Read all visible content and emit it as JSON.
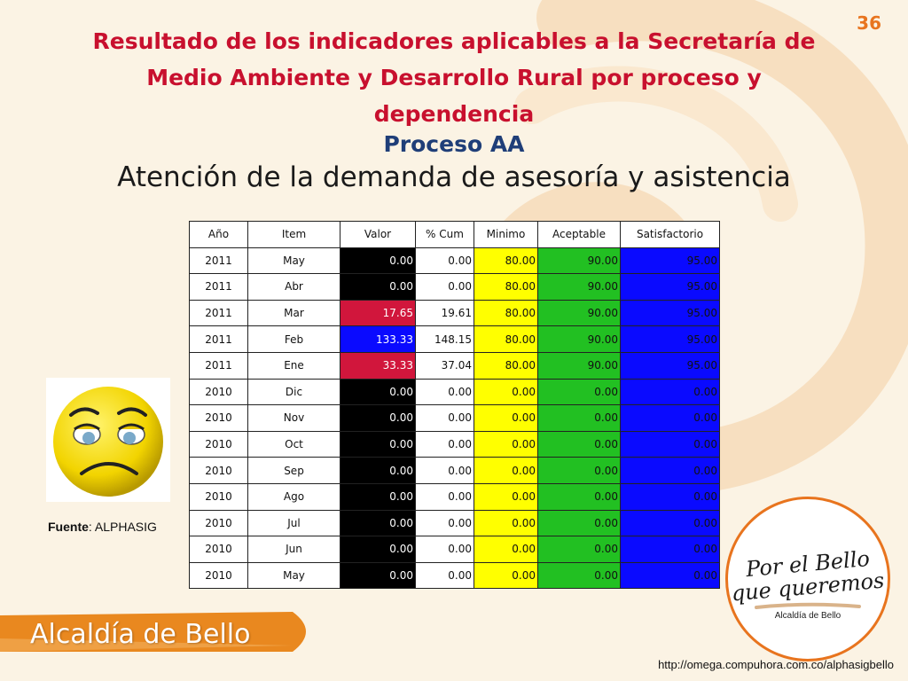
{
  "page_number": "36",
  "title": "Resultado de los indicadores aplicables a la Secretaría de Medio Ambiente y Desarrollo Rural  por proceso y dependencia",
  "subtitle": "Proceso AA",
  "heading": "Atención de la demanda de asesoría y asistencia",
  "table": {
    "headers": {
      "year": "Año",
      "item": "Item",
      "valor": "Valor",
      "cum": "% Cum",
      "minimo": "Minimo",
      "aceptable": "Aceptable",
      "satisfactorio": "Satisfactorio"
    },
    "rows": [
      {
        "year": "2011",
        "item": "May",
        "valor": "0.00",
        "cum": "0.00",
        "minimo": "80.00",
        "aceptable": "90.00",
        "satisfactorio": "95.00",
        "color": "#000000"
      },
      {
        "year": "2011",
        "item": "Abr",
        "valor": "0.00",
        "cum": "0.00",
        "minimo": "80.00",
        "aceptable": "90.00",
        "satisfactorio": "95.00",
        "color": "#000000"
      },
      {
        "year": "2011",
        "item": "Mar",
        "valor": "17.65",
        "cum": "19.61",
        "minimo": "80.00",
        "aceptable": "90.00",
        "satisfactorio": "95.00",
        "color": "#d1163c"
      },
      {
        "year": "2011",
        "item": "Feb",
        "valor": "133.33",
        "cum": "148.15",
        "minimo": "80.00",
        "aceptable": "90.00",
        "satisfactorio": "95.00",
        "color": "#0a0aff"
      },
      {
        "year": "2011",
        "item": "Ene",
        "valor": "33.33",
        "cum": "37.04",
        "minimo": "80.00",
        "aceptable": "90.00",
        "satisfactorio": "95.00",
        "color": "#d1163c"
      },
      {
        "year": "2010",
        "item": "Dic",
        "valor": "0.00",
        "cum": "0.00",
        "minimo": "0.00",
        "aceptable": "0.00",
        "satisfactorio": "0.00",
        "color": "#000000"
      },
      {
        "year": "2010",
        "item": "Nov",
        "valor": "0.00",
        "cum": "0.00",
        "minimo": "0.00",
        "aceptable": "0.00",
        "satisfactorio": "0.00",
        "color": "#000000"
      },
      {
        "year": "2010",
        "item": "Oct",
        "valor": "0.00",
        "cum": "0.00",
        "minimo": "0.00",
        "aceptable": "0.00",
        "satisfactorio": "0.00",
        "color": "#000000"
      },
      {
        "year": "2010",
        "item": "Sep",
        "valor": "0.00",
        "cum": "0.00",
        "minimo": "0.00",
        "aceptable": "0.00",
        "satisfactorio": "0.00",
        "color": "#000000"
      },
      {
        "year": "2010",
        "item": "Ago",
        "valor": "0.00",
        "cum": "0.00",
        "minimo": "0.00",
        "aceptable": "0.00",
        "satisfactorio": "0.00",
        "color": "#000000"
      },
      {
        "year": "2010",
        "item": "Jul",
        "valor": "0.00",
        "cum": "0.00",
        "minimo": "0.00",
        "aceptable": "0.00",
        "satisfactorio": "0.00",
        "color": "#000000"
      },
      {
        "year": "2010",
        "item": "Jun",
        "valor": "0.00",
        "cum": "0.00",
        "minimo": "0.00",
        "aceptable": "0.00",
        "satisfactorio": "0.00",
        "color": "#000000"
      },
      {
        "year": "2010",
        "item": "May",
        "valor": "0.00",
        "cum": "0.00",
        "minimo": "0.00",
        "aceptable": "0.00",
        "satisfactorio": "0.00",
        "color": "#000000"
      }
    ]
  },
  "face_icon": "sad-face-icon",
  "source": {
    "label": "Fuente",
    "value": ": ALPHASIG"
  },
  "logo": {
    "line1": "Por el Bello",
    "line2": "que queremos",
    "sub": "Alcaldía de Bello"
  },
  "brand": "Alcaldía de Bello",
  "url": "http://omega.compuhora.com.co/alphasigbello",
  "colors": {
    "title": "#c8102e",
    "subtitle": "#1f3e78",
    "accent": "#e8741e",
    "minimo": "#ffff00",
    "aceptable": "#22c022",
    "satisfactorio": "#0a0aff"
  }
}
